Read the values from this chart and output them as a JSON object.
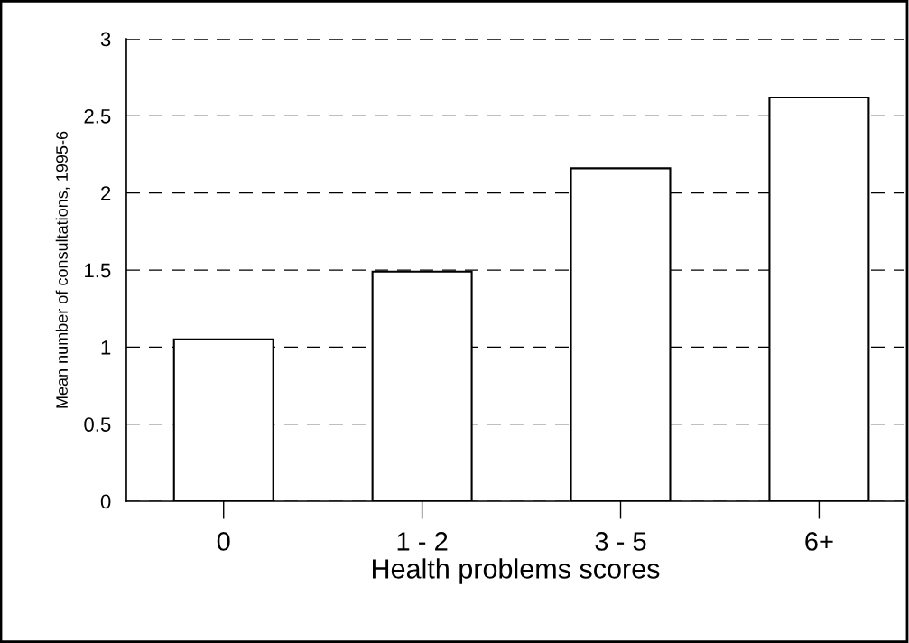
{
  "chart_data": {
    "type": "bar",
    "xlabel": "Health problems scores",
    "ylabel": "Mean number of consultations, 1995-6",
    "categories": [
      "0",
      "1 - 2",
      "3 - 5",
      "6+"
    ],
    "values": [
      1.05,
      1.49,
      2.16,
      2.62
    ],
    "color": "#ffffff",
    "ylim": [
      0,
      3
    ],
    "yticks": [
      0,
      0.5,
      1,
      1.5,
      2,
      2.5,
      3
    ],
    "grid": "y"
  }
}
